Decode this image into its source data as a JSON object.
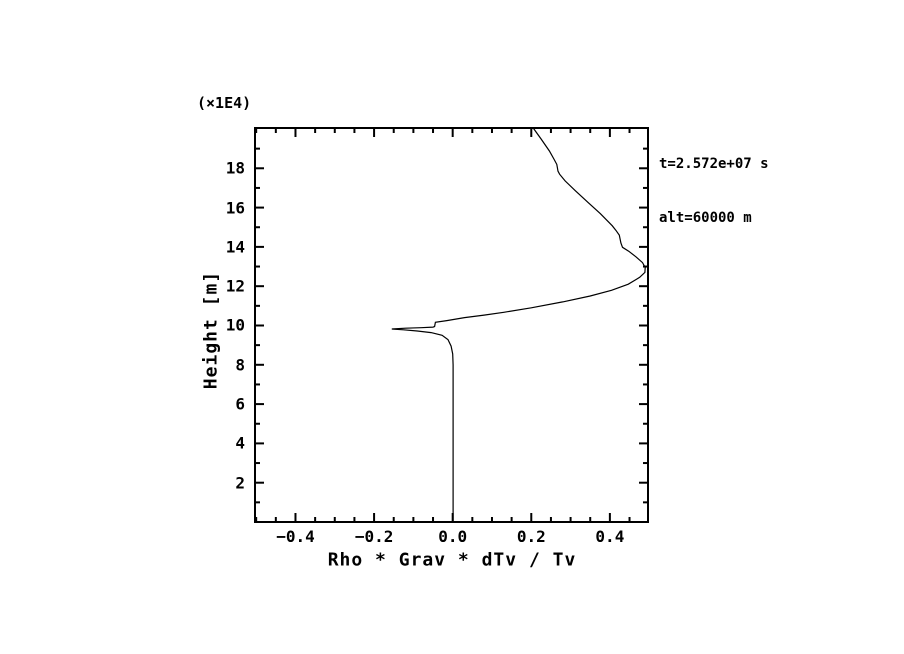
{
  "chart_data": {
    "type": "line",
    "title": "",
    "xlabel": "Rho * Grav * dTv / Tv",
    "ylabel": "Height [m]",
    "y_multiplier_label": "(×1E4)",
    "annotations": [
      "t=2.572e+07 s",
      "alt=60000 m"
    ],
    "xlim": [
      -0.503,
      0.497
    ],
    "ylim": [
      0,
      20.05
    ],
    "x_major_ticks": [
      -0.4,
      -0.2,
      0.0,
      0.2,
      0.4
    ],
    "x_tick_labels": [
      "−0.4",
      "−0.2",
      "0.0",
      "0.2",
      "0.4"
    ],
    "x_minor_step": 0.05,
    "y_major_ticks": [
      2,
      4,
      6,
      8,
      10,
      12,
      14,
      16,
      18
    ],
    "y_tick_labels": [
      "2",
      "4",
      "6",
      "8",
      "10",
      "12",
      "14",
      "16",
      "18"
    ],
    "y_minor_step": 1,
    "grid": false,
    "legend": "none",
    "frame_color": "#000000",
    "line_color": "#000000",
    "background": "#ffffff",
    "series": [
      {
        "name": "Rho*Grav*dTv/Tv profile",
        "points": [
          [
            0.001,
            0.0
          ],
          [
            0.001,
            3.0
          ],
          [
            0.001,
            6.0
          ],
          [
            0.001,
            8.0
          ],
          [
            0.0,
            8.55
          ],
          [
            -0.004,
            8.95
          ],
          [
            -0.012,
            9.28
          ],
          [
            -0.027,
            9.5
          ],
          [
            -0.055,
            9.64
          ],
          [
            -0.09,
            9.72
          ],
          [
            -0.125,
            9.78
          ],
          [
            -0.155,
            9.82
          ],
          [
            -0.12,
            9.86
          ],
          [
            -0.08,
            9.89
          ],
          [
            -0.05,
            9.92
          ],
          [
            -0.046,
            9.95
          ],
          [
            -0.044,
            10.16
          ],
          [
            -0.015,
            10.25
          ],
          [
            0.03,
            10.4
          ],
          [
            0.08,
            10.53
          ],
          [
            0.13,
            10.67
          ],
          [
            0.2,
            10.9
          ],
          [
            0.28,
            11.2
          ],
          [
            0.35,
            11.5
          ],
          [
            0.404,
            11.79
          ],
          [
            0.447,
            12.1
          ],
          [
            0.476,
            12.45
          ],
          [
            0.489,
            12.7
          ],
          [
            0.49,
            12.95
          ],
          [
            0.483,
            13.2
          ],
          [
            0.466,
            13.5
          ],
          [
            0.448,
            13.78
          ],
          [
            0.432,
            13.98
          ],
          [
            0.428,
            14.2
          ],
          [
            0.424,
            14.6
          ],
          [
            0.415,
            14.85
          ],
          [
            0.406,
            15.08
          ],
          [
            0.376,
            15.69
          ],
          [
            0.345,
            16.25
          ],
          [
            0.312,
            16.86
          ],
          [
            0.286,
            17.36
          ],
          [
            0.272,
            17.7
          ],
          [
            0.268,
            17.85
          ],
          [
            0.265,
            18.2
          ],
          [
            0.258,
            18.45
          ],
          [
            0.246,
            18.88
          ],
          [
            0.225,
            19.49
          ],
          [
            0.205,
            20.05
          ]
        ]
      }
    ]
  }
}
